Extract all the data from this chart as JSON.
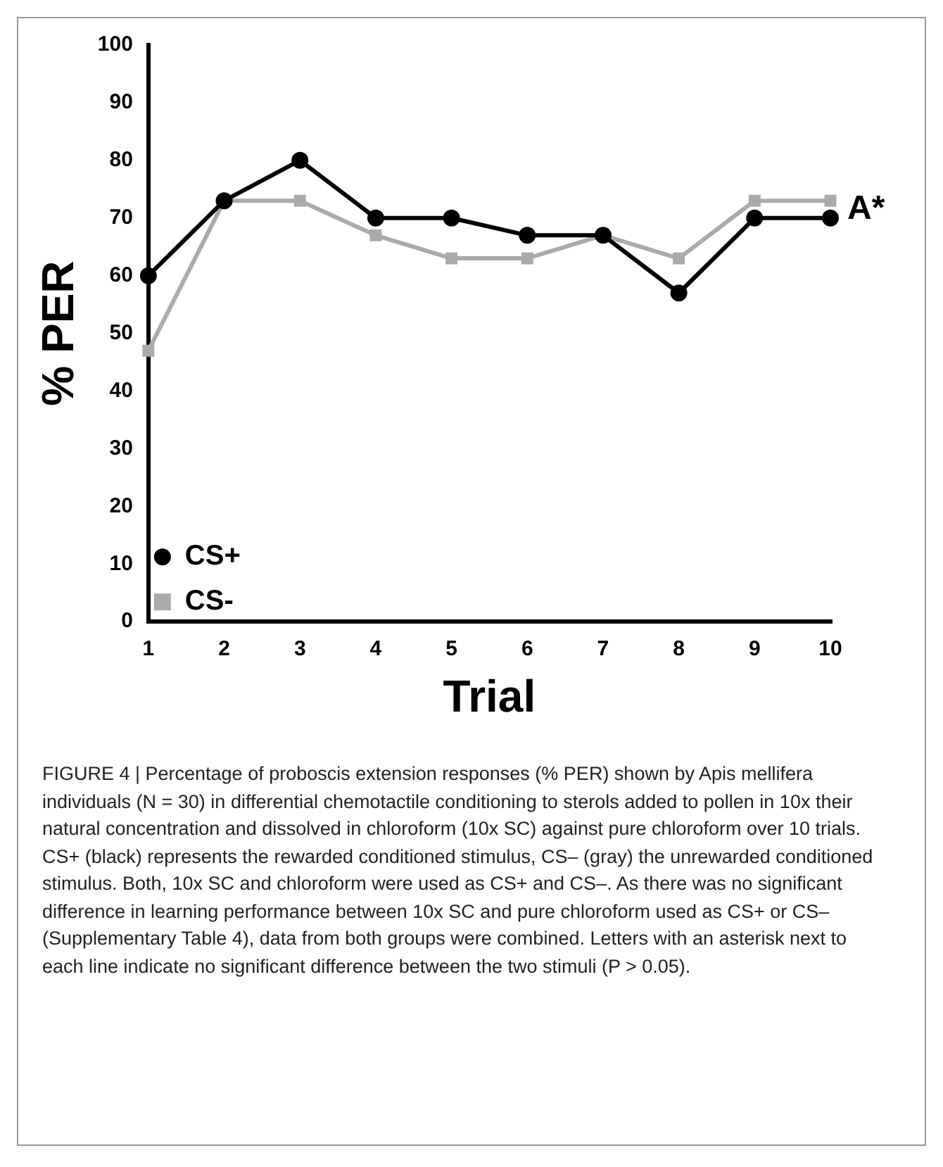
{
  "chart_data": {
    "type": "line",
    "categories": [
      "1",
      "2",
      "3",
      "4",
      "5",
      "6",
      "7",
      "8",
      "9",
      "10"
    ],
    "xlabel": "Trial",
    "ylabel": "% PER",
    "ylim": [
      0,
      100
    ],
    "yticks": [
      0,
      10,
      20,
      30,
      40,
      50,
      60,
      70,
      80,
      90,
      100
    ],
    "series": [
      {
        "name": "CS+",
        "color": "#000000",
        "marker": "circle",
        "values": [
          60,
          73,
          80,
          70,
          70,
          67,
          67,
          57,
          70,
          70
        ]
      },
      {
        "name": "CS-",
        "color": "#aaaaaa",
        "marker": "square",
        "values": [
          47,
          73,
          73,
          67,
          63,
          63,
          67,
          63,
          73,
          73
        ]
      }
    ],
    "legend": "bottom left",
    "grid": false,
    "line_style": "solid",
    "annotations": [
      {
        "text": "A*",
        "x": "10",
        "y": 71.5
      },
      "FIGURE 4 | Percentage of proboscis extension responses (% PER) shown by Apis mellifera individuals (N = 30) in differential chemotactile conditioning to sterols added to pollen in 10x their natural concentration and dissolved in chloroform (10x SC) against pure chloroform over 10 trials. CS+ (black) represents the rewarded conditioned stimulus, CS– (gray) the unrewarded conditioned stimulus. Both, 10x SC and chloroform were used as CS+ and CS–. As there was no significant difference in learning performance between 10x SC and pure chloroform used as CS+ or CS– (Supplementary Table 4), data from both groups were combined. Letters with an asterisk next to each line indicate no significant difference between the two stimuli (P > 0.05)."
    ]
  }
}
